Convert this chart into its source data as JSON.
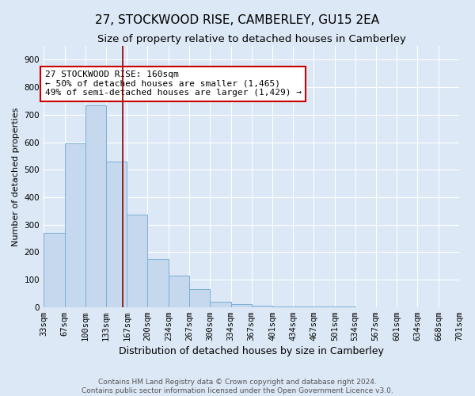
{
  "title": "27, STOCKWOOD RISE, CAMBERLEY, GU15 2EA",
  "subtitle": "Size of property relative to detached houses in Camberley",
  "xlabel": "Distribution of detached houses by size in Camberley",
  "ylabel": "Number of detached properties",
  "property_size": 160,
  "bin_edges": [
    33,
    67,
    100,
    133,
    167,
    200,
    234,
    267,
    300,
    334,
    367,
    401,
    434,
    467,
    501,
    534,
    567,
    601,
    634,
    668,
    701
  ],
  "bar_heights": [
    270,
    595,
    735,
    530,
    335,
    175,
    115,
    65,
    20,
    10,
    5,
    3,
    2,
    1,
    1,
    0,
    0,
    0,
    0,
    0
  ],
  "bar_color": "#c5d8ee",
  "bar_edge_color": "#7aafd4",
  "vline_color": "#8b0000",
  "annotation_text": "27 STOCKWOOD RISE: 160sqm\n← 50% of detached houses are smaller (1,465)\n49% of semi-detached houses are larger (1,429) →",
  "annotation_box_color": "#ffffff",
  "annotation_box_edge_color": "#cc0000",
  "ylim": [
    0,
    950
  ],
  "yticks": [
    0,
    100,
    200,
    300,
    400,
    500,
    600,
    700,
    800,
    900
  ],
  "background_color": "#dce8f5",
  "plot_bg_color": "#dce8f5",
  "footer_text": "Contains HM Land Registry data © Crown copyright and database right 2024.\nContains public sector information licensed under the Open Government Licence v3.0.",
  "title_fontsize": 11,
  "subtitle_fontsize": 9.5,
  "xlabel_fontsize": 9,
  "ylabel_fontsize": 8,
  "tick_fontsize": 7.5,
  "annotation_fontsize": 8,
  "footer_fontsize": 6.5
}
